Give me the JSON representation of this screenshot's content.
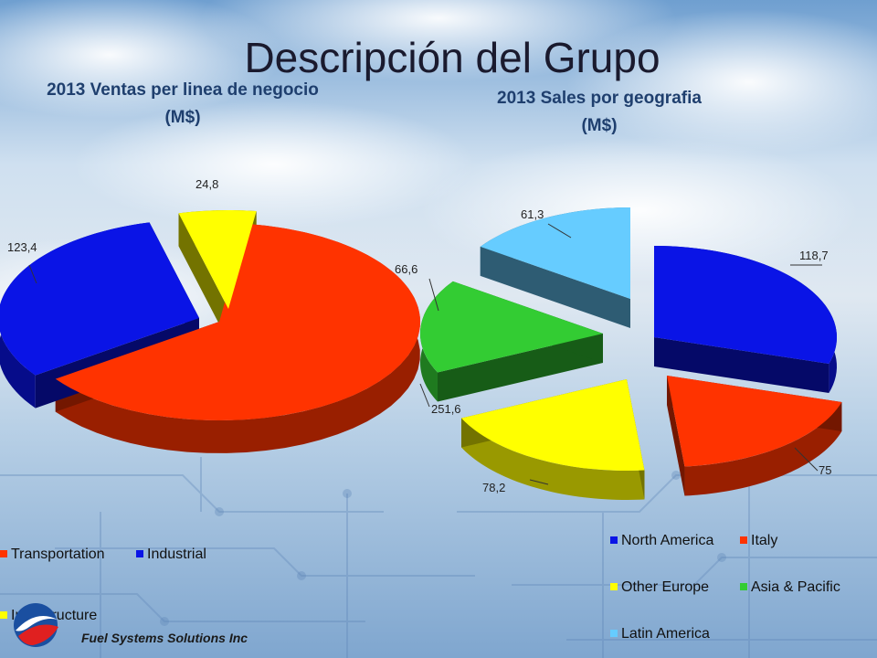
{
  "main_title": "Descripción del Grupo",
  "footer": {
    "company": "Fuel Systems Solutions Inc"
  },
  "chart_data": [
    {
      "type": "pie",
      "title": "2013 Ventas per linea de negocio",
      "subtitle": "(M$)",
      "series": [
        {
          "name": "Transportation",
          "value": 251.6,
          "label": "251,6",
          "color": "#ff3300"
        },
        {
          "name": "Industrial",
          "value": 123.4,
          "label": "123,4",
          "color": "#0a14e6"
        },
        {
          "name": "Infrastructure",
          "value": 24.8,
          "label": "24,8",
          "color": "#ffff00"
        }
      ],
      "legend_position": "bottom"
    },
    {
      "type": "pie",
      "title": "2013 Sales por geografia",
      "subtitle": "(M$)",
      "series": [
        {
          "name": "North America",
          "value": 118.7,
          "label": "118,7",
          "color": "#0a14e6"
        },
        {
          "name": "Italy",
          "value": 75,
          "label": "75",
          "color": "#ff3300"
        },
        {
          "name": "Other Europe",
          "value": 78.2,
          "label": "78,2",
          "color": "#ffff00"
        },
        {
          "name": "Asia & Pacific",
          "value": 66.6,
          "label": "66,6",
          "color": "#33cc33"
        },
        {
          "name": "Latin America",
          "value": 61.3,
          "label": "61,3",
          "color": "#66ccff"
        }
      ],
      "legend_position": "bottom"
    }
  ]
}
